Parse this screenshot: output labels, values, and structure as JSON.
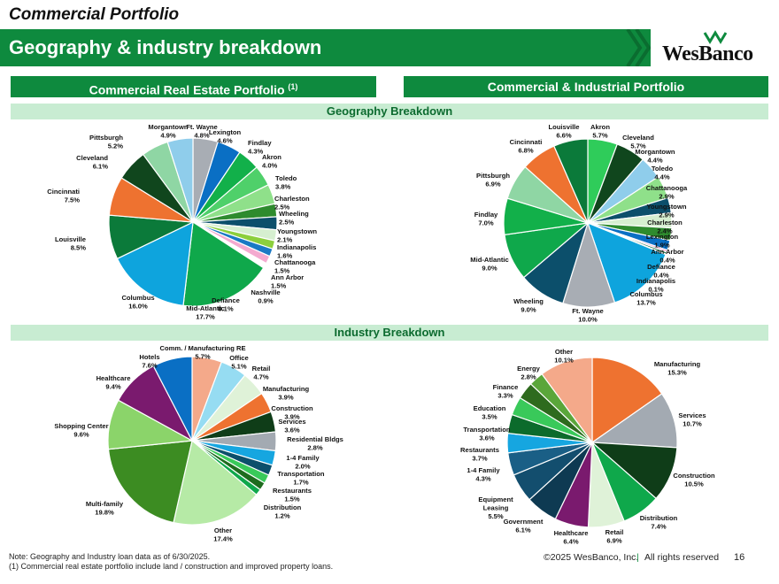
{
  "page": {
    "title": "Commercial Portfolio",
    "banner": "Geography & industry breakdown",
    "logo_text": "WesBanco",
    "left_section": "Commercial Real Estate Portfolio",
    "left_section_sup": "(1)",
    "right_section": "Commercial & Industrial Portfolio",
    "geo_heading": "Geography Breakdown",
    "ind_heading": "Industry Breakdown",
    "note1": "Note: Geography and Industry loan data as of 6/30/2025.",
    "note2": "(1) Commercial real estate portfolio include land / construction and improved property loans.",
    "copyright": "©2025 WesBanco, Inc.",
    "rights": "All rights reserved",
    "page_number": "16",
    "colors": {
      "brand_green": "#0e8a3e",
      "light_green": "#c8ecd2"
    }
  },
  "chart_data": [
    {
      "id": "cre-geo",
      "type": "pie",
      "title": "Commercial Real Estate Portfolio - Geography Breakdown",
      "slices": [
        {
          "label": "Ft. Wayne",
          "value": 4.8,
          "display": "4.8%",
          "color": "#a8adb4"
        },
        {
          "label": "Lexington",
          "value": 4.6,
          "display": "4.6%",
          "color": "#0a6fc4"
        },
        {
          "label": "Findlay",
          "value": 4.3,
          "display": "4.3%",
          "color": "#12b04a"
        },
        {
          "label": "Akron",
          "value": 4.0,
          "display": "4.0%",
          "color": "#4fd06a"
        },
        {
          "label": "Toledo",
          "value": 3.8,
          "display": "3.8%",
          "color": "#8fe08a"
        },
        {
          "label": "Charleston",
          "value": 2.5,
          "display": "2.5%",
          "color": "#2e8b2e"
        },
        {
          "label": "Wheeling",
          "value": 2.5,
          "display": "2.5%",
          "color": "#0c4f6b"
        },
        {
          "label": "Youngstown",
          "value": 2.1,
          "display": "2.1%",
          "color": "#d6efd0"
        },
        {
          "label": "Indianapolis",
          "value": 1.6,
          "display": "1.6%",
          "color": "#8ccf3c"
        },
        {
          "label": "Chattanooga",
          "value": 1.5,
          "display": "1.5%",
          "color": "#1a79c4"
        },
        {
          "label": "Ann Arbor",
          "value": 1.5,
          "display": "1.5%",
          "color": "#f4aad0"
        },
        {
          "label": "Nashville",
          "value": 0.9,
          "display": "0.9%",
          "color": "#ffffff"
        },
        {
          "label": "Defiance",
          "value": 0.1,
          "display": "0.1%",
          "color": "#0e6b3a"
        },
        {
          "label": "Mid-Atlantic",
          "value": 17.7,
          "display": "17.7%",
          "color": "#0fa84b"
        },
        {
          "label": "Columbus",
          "value": 16.0,
          "display": "16.0%",
          "color": "#0ea4dd"
        },
        {
          "label": "Louisville",
          "value": 8.5,
          "display": "8.5%",
          "color": "#0b7a3a"
        },
        {
          "label": "Cincinnati",
          "value": 7.5,
          "display": "7.5%",
          "color": "#ee7230"
        },
        {
          "label": "Cleveland",
          "value": 6.1,
          "display": "6.1%",
          "color": "#10461d"
        },
        {
          "label": "Pittsburgh",
          "value": 5.2,
          "display": "5.2%",
          "color": "#8fd6a4"
        },
        {
          "label": "Morgantown",
          "value": 4.9,
          "display": "4.9%",
          "color": "#8fcdeb"
        }
      ],
      "labels": [
        {
          "name": "Morgantown",
          "pct": "4.9%"
        },
        {
          "name": "Ft. Wayne",
          "pct": "4.8%"
        },
        {
          "name": "Lexington",
          "pct": "4.6%"
        },
        {
          "name": "Pittsburgh",
          "pct": "5.2%"
        },
        {
          "name": "Findlay",
          "pct": "4.3%"
        },
        {
          "name": "Akron",
          "pct": "4.0%"
        },
        {
          "name": "Cleveland",
          "pct": "6.1%"
        },
        {
          "name": "Toledo",
          "pct": "3.8%"
        },
        {
          "name": "Cincinnati",
          "pct": "7.5%"
        },
        {
          "name": "Charleston",
          "pct": "2.5%"
        },
        {
          "name": "Wheeling",
          "pct": "2.5%"
        },
        {
          "name": "Youngstown",
          "pct": "2.1%"
        },
        {
          "name": "Louisville",
          "pct": "8.5%"
        },
        {
          "name": "Indianapolis",
          "pct": "1.6%"
        },
        {
          "name": "Chattanooga",
          "pct": "1.5%"
        },
        {
          "name": "Ann Arbor",
          "pct": "1.5%"
        },
        {
          "name": "Nashville",
          "pct": "0.9%"
        },
        {
          "name": "Columbus",
          "pct": "16.0%"
        },
        {
          "name": "Defiance",
          "pct": "0.1%"
        },
        {
          "name": "Mid-Atlantic",
          "pct": "17.7%"
        }
      ]
    },
    {
      "id": "ci-geo",
      "type": "pie",
      "title": "Commercial & Industrial Portfolio - Geography Breakdown",
      "slices": [
        {
          "label": "Akron",
          "value": 5.7,
          "display": "5.7%",
          "color": "#2fcc5a"
        },
        {
          "label": "Cleveland",
          "value": 5.7,
          "display": "5.7%",
          "color": "#10461d"
        },
        {
          "label": "Morgantown",
          "value": 4.4,
          "display": "4.4%",
          "color": "#8fcdeb"
        },
        {
          "label": "Toledo",
          "value": 4.4,
          "display": "4.4%",
          "color": "#8fe08a"
        },
        {
          "label": "Chattanooga",
          "value": 2.9,
          "display": "2.9%",
          "color": "#0c4f6b"
        },
        {
          "label": "Youngstown",
          "value": 2.9,
          "display": "2.9%",
          "color": "#d6efd0"
        },
        {
          "label": "Charleston",
          "value": 2.4,
          "display": "2.4%",
          "color": "#2e8b2e"
        },
        {
          "label": "Lexington",
          "value": 1.9,
          "display": "1.9%",
          "color": "#0a6fc4"
        },
        {
          "label": "Ann Arbor",
          "value": 0.4,
          "display": "0.4%",
          "color": "#f4aad0"
        },
        {
          "label": "Defiance",
          "value": 0.4,
          "display": "0.4%",
          "color": "#0e6b3a"
        },
        {
          "label": "Indianapolis",
          "value": 0.1,
          "display": "0.1%",
          "color": "#8ccf3c"
        },
        {
          "label": "Columbus",
          "value": 13.7,
          "display": "13.7%",
          "color": "#0ea4dd"
        },
        {
          "label": "Ft. Wayne",
          "value": 10.0,
          "display": "10.0%",
          "color": "#a8adb4"
        },
        {
          "label": "Wheeling",
          "value": 9.0,
          "display": "9.0%",
          "color": "#0c4f6b"
        },
        {
          "label": "Mid-Atlantic",
          "value": 9.0,
          "display": "9.0%",
          "color": "#0fa84b"
        },
        {
          "label": "Findlay",
          "value": 7.0,
          "display": "7.0%",
          "color": "#12b04a"
        },
        {
          "label": "Pittsburgh",
          "value": 6.9,
          "display": "6.9%",
          "color": "#8fd6a4"
        },
        {
          "label": "Cincinnati",
          "value": 6.8,
          "display": "6.8%",
          "color": "#ee7230"
        },
        {
          "label": "Louisville",
          "value": 6.6,
          "display": "6.6%",
          "color": "#0b7a3a"
        }
      ],
      "labels": [
        {
          "name": "Louisville",
          "pct": "6.6%"
        },
        {
          "name": "Akron",
          "pct": "5.7%"
        },
        {
          "name": "Cleveland",
          "pct": "5.7%"
        },
        {
          "name": "Cincinnati",
          "pct": "6.8%"
        },
        {
          "name": "Morgantown",
          "pct": "4.4%"
        },
        {
          "name": "Toledo",
          "pct": "4.4%"
        },
        {
          "name": "Pittsburgh",
          "pct": "6.9%"
        },
        {
          "name": "Chattanooga",
          "pct": "2.9%"
        },
        {
          "name": "Youngstown",
          "pct": "2.9%"
        },
        {
          "name": "Findlay",
          "pct": "7.0%"
        },
        {
          "name": "Charleston",
          "pct": "2.4%"
        },
        {
          "name": "Lexington",
          "pct": "1.9%"
        },
        {
          "name": "Ann Arbor",
          "pct": "0.4%"
        },
        {
          "name": "Mid-Atlantic",
          "pct": "9.0%"
        },
        {
          "name": "Defiance",
          "pct": "0.4%"
        },
        {
          "name": "Indianapolis",
          "pct": "0.1%"
        },
        {
          "name": "Columbus",
          "pct": "13.7%"
        },
        {
          "name": "Wheeling",
          "pct": "9.0%"
        },
        {
          "name": "Ft. Wayne",
          "pct": "10.0%"
        }
      ]
    },
    {
      "id": "cre-ind",
      "type": "pie",
      "title": "Commercial Real Estate Portfolio - Industry Breakdown",
      "slices": [
        {
          "label": "Comm. / Manufacturing RE",
          "value": 5.7,
          "display": "5.7%",
          "color": "#f4a98a"
        },
        {
          "label": "Office",
          "value": 5.1,
          "display": "5.1%",
          "color": "#96dcf2"
        },
        {
          "label": "Retail",
          "value": 4.7,
          "display": "4.7%",
          "color": "#dff2d8"
        },
        {
          "label": "Manufacturing",
          "value": 3.9,
          "display": "3.9%",
          "color": "#ee7230"
        },
        {
          "label": "Construction",
          "value": 3.9,
          "display": "3.9%",
          "color": "#0f3d18"
        },
        {
          "label": "Services",
          "value": 3.6,
          "display": "3.6%",
          "color": "#a3aab2"
        },
        {
          "label": "Residential Bldgs",
          "value": 2.8,
          "display": "2.8%",
          "color": "#16a6e0"
        },
        {
          "label": "1-4 Family",
          "value": 2.0,
          "display": "2.0%",
          "color": "#0c4f6b"
        },
        {
          "label": "Transportation",
          "value": 1.7,
          "display": "1.7%",
          "color": "#39c95a"
        },
        {
          "label": "Restaurants",
          "value": 1.5,
          "display": "1.5%",
          "color": "#1e6b1e"
        },
        {
          "label": "Distribution",
          "value": 1.2,
          "display": "1.2%",
          "color": "#0fa84b"
        },
        {
          "label": "Other",
          "value": 17.4,
          "display": "17.4%",
          "color": "#b6eaa6"
        },
        {
          "label": "Multi-family",
          "value": 19.8,
          "display": "19.8%",
          "color": "#3c8c22"
        },
        {
          "label": "Shopping Center",
          "value": 9.6,
          "display": "9.6%",
          "color": "#8bd46a"
        },
        {
          "label": "Healthcare",
          "value": 9.4,
          "display": "9.4%",
          "color": "#7a1a6e"
        },
        {
          "label": "Hotels",
          "value": 7.6,
          "display": "7.6%",
          "color": "#0a6fc4"
        }
      ],
      "labels": [
        {
          "name": "Comm. / Manufacturing RE",
          "pct": "5.7%"
        },
        {
          "name": "Hotels",
          "pct": "7.6%"
        },
        {
          "name": "Office",
          "pct": "5.1%"
        },
        {
          "name": "Retail",
          "pct": "4.7%"
        },
        {
          "name": "Healthcare",
          "pct": "9.4%"
        },
        {
          "name": "Manufacturing",
          "pct": "3.9%"
        },
        {
          "name": "Construction",
          "pct": "3.9%"
        },
        {
          "name": "Services",
          "pct": "3.6%"
        },
        {
          "name": "Shopping Center",
          "pct": "9.6%"
        },
        {
          "name": "Residential Bldgs",
          "pct": "2.8%"
        },
        {
          "name": "1-4 Family",
          "pct": "2.0%"
        },
        {
          "name": "Transportation",
          "pct": "1.7%"
        },
        {
          "name": "Restaurants",
          "pct": "1.5%"
        },
        {
          "name": "Multi-family",
          "pct": "19.8%"
        },
        {
          "name": "Distribution",
          "pct": "1.2%"
        },
        {
          "name": "Other",
          "pct": "17.4%"
        }
      ]
    },
    {
      "id": "ci-ind",
      "type": "pie",
      "title": "Commercial & Industrial Portfolio - Industry Breakdown",
      "slices": [
        {
          "label": "Manufacturing",
          "value": 15.3,
          "display": "15.3%",
          "color": "#ee7230"
        },
        {
          "label": "Services",
          "value": 10.7,
          "display": "10.7%",
          "color": "#a3aab2"
        },
        {
          "label": "Construction",
          "value": 10.5,
          "display": "10.5%",
          "color": "#0f3d18"
        },
        {
          "label": "Distribution",
          "value": 7.4,
          "display": "7.4%",
          "color": "#0fa84b"
        },
        {
          "label": "Retail",
          "value": 6.9,
          "display": "6.9%",
          "color": "#dff2d8"
        },
        {
          "label": "Healthcare",
          "value": 6.4,
          "display": "6.4%",
          "color": "#7a1a6e"
        },
        {
          "label": "Government",
          "value": 6.1,
          "display": "6.1%",
          "color": "#0e3a52"
        },
        {
          "label": "Equipment Leasing",
          "value": 5.5,
          "display": "5.5%",
          "color": "#134e6e"
        },
        {
          "label": "1-4 Family",
          "value": 4.3,
          "display": "4.3%",
          "color": "#1a5f86"
        },
        {
          "label": "Restaurants",
          "value": 3.7,
          "display": "3.7%",
          "color": "#16a6e0"
        },
        {
          "label": "Transportation",
          "value": 3.6,
          "display": "3.6%",
          "color": "#0c6b2c"
        },
        {
          "label": "Education",
          "value": 3.5,
          "display": "3.5%",
          "color": "#39c95a"
        },
        {
          "label": "Finance",
          "value": 3.3,
          "display": "3.3%",
          "color": "#2e6b1e"
        },
        {
          "label": "Energy",
          "value": 2.8,
          "display": "2.8%",
          "color": "#5aa63a"
        },
        {
          "label": "Other",
          "value": 10.1,
          "display": "10.1%",
          "color": "#f4a98a"
        }
      ],
      "labels": [
        {
          "name": "Other",
          "pct": "10.1%"
        },
        {
          "name": "Energy",
          "pct": "2.8%"
        },
        {
          "name": "Manufacturing",
          "pct": "15.3%"
        },
        {
          "name": "Finance",
          "pct": "3.3%"
        },
        {
          "name": "Education",
          "pct": "3.5%"
        },
        {
          "name": "Services",
          "pct": "10.7%"
        },
        {
          "name": "Transportation",
          "pct": "3.6%"
        },
        {
          "name": "Restaurants",
          "pct": "3.7%"
        },
        {
          "name": "1-4 Family",
          "pct": "4.3%"
        },
        {
          "name": "Construction",
          "pct": "10.5%"
        },
        {
          "name": "Equipment Leasing",
          "pct": "5.5%"
        },
        {
          "name": "Distribution",
          "pct": "7.4%"
        },
        {
          "name": "Government",
          "pct": "6.1%"
        },
        {
          "name": "Retail",
          "pct": "6.9%"
        },
        {
          "name": "Healthcare",
          "pct": "6.4%"
        }
      ]
    }
  ]
}
